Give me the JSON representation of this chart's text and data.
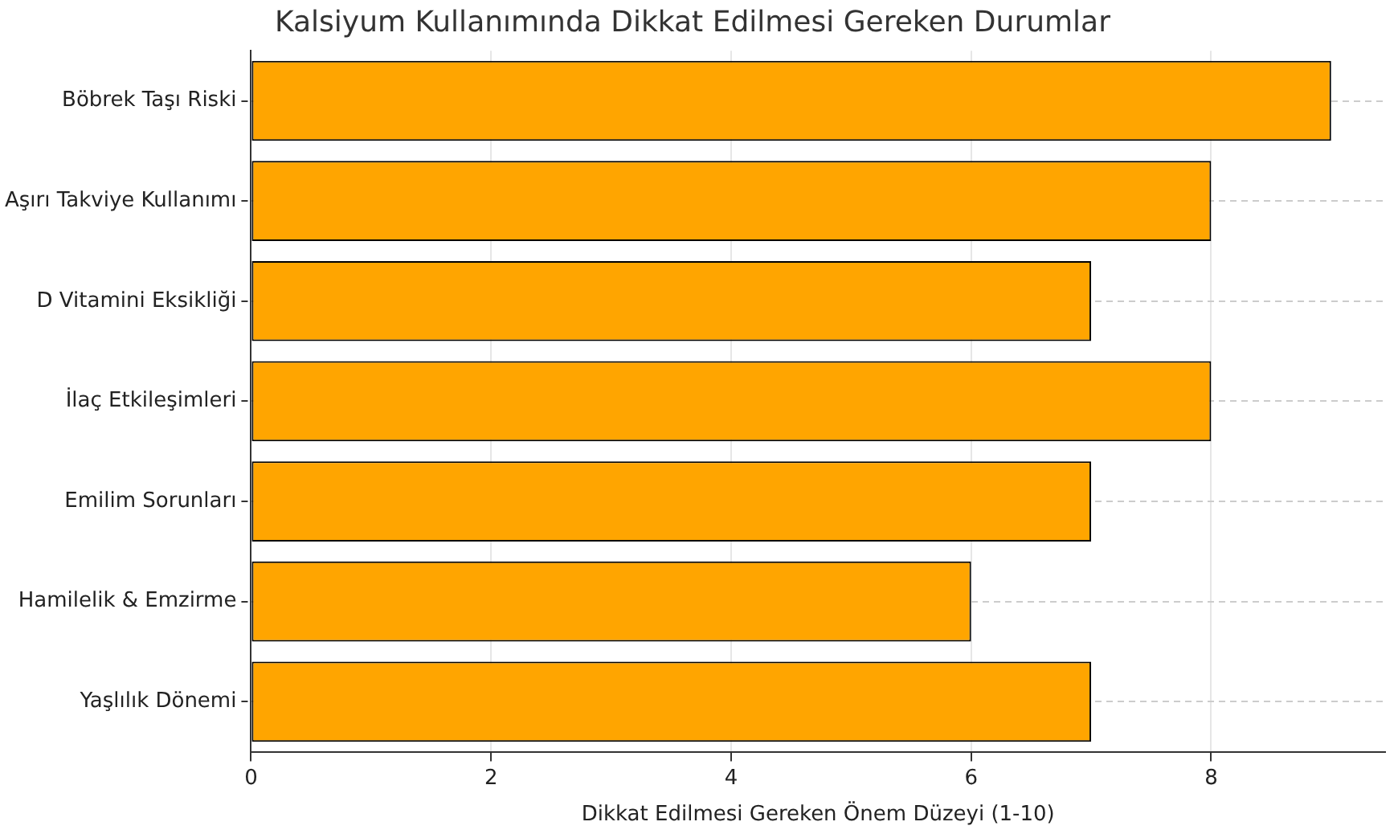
{
  "chart_data": {
    "type": "bar",
    "orientation": "horizontal",
    "title": "Kalsiyum Kullanımında Dikkat Edilmesi Gereken Durumlar",
    "xlabel": "Dikkat Edilmesi Gereken Önem Düzeyi (1-10)",
    "categories": [
      "Böbrek Taşı Riski",
      "Aşırı Takviye Kullanımı",
      "D Vitamini Eksikliği",
      "İlaç Etkileşimleri",
      "Emilim Sorunları",
      "Hamilelik & Emzirme",
      "Yaşlılık Dönemi"
    ],
    "values": [
      9,
      8,
      7,
      8,
      7,
      6,
      7
    ],
    "color": "#ffa500",
    "xlim": [
      0,
      9.45
    ],
    "xticks": [
      0,
      2,
      4,
      6,
      8
    ],
    "grid": true
  }
}
